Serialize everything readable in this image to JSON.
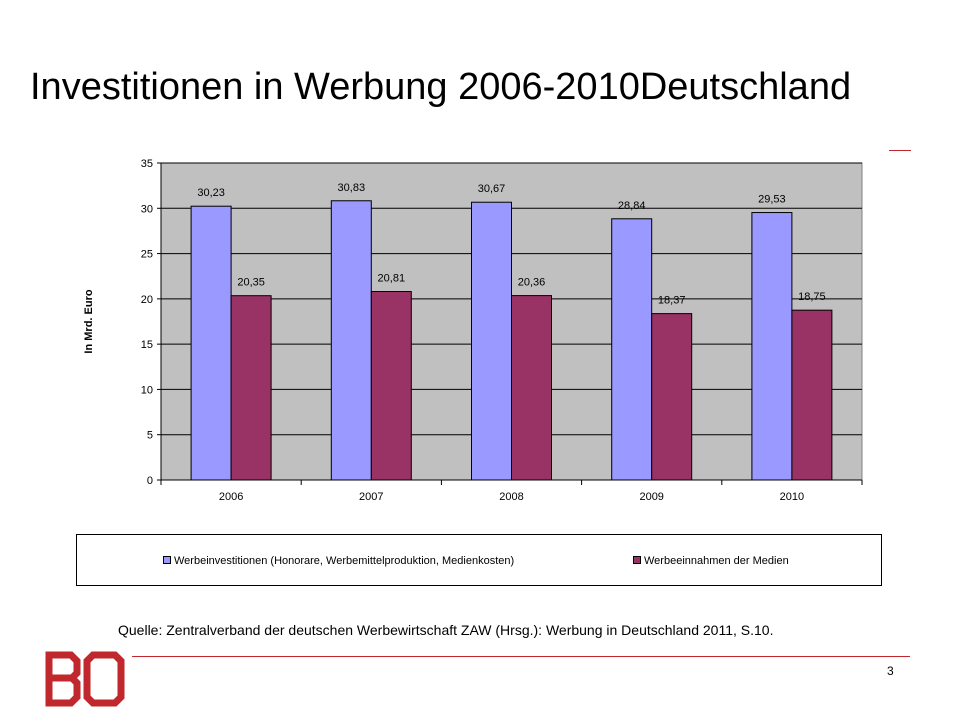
{
  "slide": {
    "title": "Investitionen in Werbung 2006-2010Deutschland",
    "source": "Quelle: Zentralverband der deutschen Werbewirtschaft ZAW (Hrsg.): Werbung in Deutschland 2011, S.10.",
    "page_number": "3",
    "accent_color": "#c0282d"
  },
  "chart_data": {
    "type": "bar",
    "categories": [
      "2006",
      "2007",
      "2008",
      "2009",
      "2010"
    ],
    "series": [
      {
        "name": "Werbeinvestitionen (Honorare, Werbemittelproduktion, Medienkosten)",
        "values": [
          30.23,
          30.83,
          30.67,
          28.84,
          29.53
        ],
        "labels": [
          "30,23",
          "30,83",
          "30,67",
          "28,84",
          "29,53"
        ],
        "color": "#9999ff"
      },
      {
        "name": "Werbeeinnahmen der Medien",
        "values": [
          20.35,
          20.81,
          20.36,
          18.37,
          18.75
        ],
        "labels": [
          "20,35",
          "20,81",
          "20,36",
          "18,37",
          "18,75"
        ],
        "color": "#993366"
      }
    ],
    "ylabel": "In Mrd. Euro",
    "xlabel": "",
    "ylim": [
      0,
      35
    ],
    "yticks": [
      "0",
      "5",
      "10",
      "15",
      "20",
      "25",
      "30",
      "35"
    ],
    "grid": true,
    "plot_background": "#c0c0c0",
    "legend_position": "bottom"
  }
}
